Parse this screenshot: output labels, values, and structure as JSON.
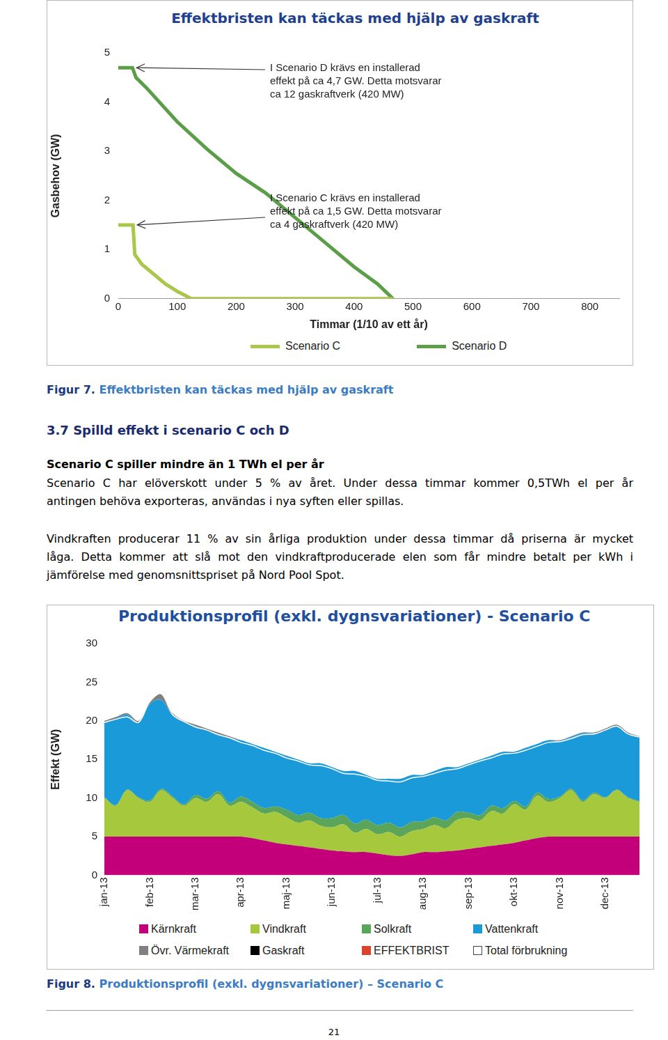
{
  "chart_data": [
    {
      "type": "line",
      "title": "Effektbristen kan täckas med hjälp av gaskraft",
      "xlabel": "Timmar (1/10 av ett år)",
      "ylabel": "Gasbehov (GW)",
      "xlim": [
        0,
        850
      ],
      "xticks": [
        0,
        100,
        200,
        300,
        400,
        500,
        600,
        700,
        800
      ],
      "ylim": [
        0,
        5
      ],
      "yticks": [
        0,
        1,
        2,
        3,
        4,
        5
      ],
      "grid": false,
      "legend": "bottom",
      "series": [
        {
          "name": "Scenario C",
          "color": "#a9c84a",
          "x": [
            0,
            25,
            28,
            40,
            60,
            80,
            100,
            124,
            466
          ],
          "values": [
            1.5,
            1.5,
            0.9,
            0.7,
            0.5,
            0.3,
            0.15,
            0,
            0
          ]
        },
        {
          "name": "Scenario D",
          "color": "#5a9e47",
          "x": [
            0,
            24,
            30,
            47,
            100,
            150,
            200,
            250,
            300,
            350,
            400,
            440,
            466
          ],
          "values": [
            4.7,
            4.7,
            4.5,
            4.3,
            3.6,
            3.05,
            2.55,
            2.15,
            1.65,
            1.15,
            0.65,
            0.3,
            0
          ]
        }
      ],
      "annotations": [
        {
          "series": "Scenario D",
          "text": [
            "I Scenario D krävs en installerad",
            "effekt på ca 4,7 GW. Detta motsvarar",
            "ca 12 gaskraftverk (420 MW)"
          ]
        },
        {
          "series": "Scenario C",
          "text": [
            "I Scenario C krävs en installerad",
            "effekt på ca 1,5 GW. Detta motsvarar",
            "ca 4 gaskraftverk (420 MW)"
          ]
        }
      ]
    },
    {
      "type": "area",
      "title": "Produktionsprofil (exkl. dygnsvariationer) - Scenario C",
      "ylabel": "Effekt (GW)",
      "categories": [
        "jan-13",
        null,
        null,
        null,
        "feb-13",
        null,
        null,
        null,
        "mar-13",
        null,
        null,
        null,
        "apr-13",
        null,
        null,
        null,
        "maj-13",
        null,
        null,
        null,
        "jun-13",
        null,
        null,
        null,
        "jul-13",
        null,
        null,
        null,
        "aug-13",
        null,
        null,
        null,
        "sep-13",
        null,
        null,
        null,
        "okt-13",
        null,
        null,
        null,
        "nov-13",
        null,
        null,
        null,
        "dec-13",
        null,
        null,
        null
      ],
      "ylim": [
        0,
        30
      ],
      "yticks": [
        0,
        5,
        10,
        15,
        20,
        25,
        30
      ],
      "grid": false,
      "stacked": true,
      "legend": "bottom",
      "series": [
        {
          "name": "Kärnkraft",
          "color": "#c3007a",
          "values": [
            5,
            5,
            5,
            5,
            5,
            5,
            5,
            5,
            5,
            5,
            5,
            5,
            5,
            4.8,
            4.5,
            4.2,
            4,
            3.8,
            3.6,
            3.4,
            3.2,
            3.1,
            3,
            3,
            2.8,
            2.6,
            2.5,
            2.7,
            3,
            3,
            3.1,
            3.2,
            3.4,
            3.6,
            3.8,
            4,
            4.2,
            4.5,
            4.8,
            5,
            5,
            5,
            5,
            5,
            5,
            5,
            5,
            5
          ]
        },
        {
          "name": "Vindkraft",
          "color": "#a6c83c",
          "values": [
            5,
            4,
            6,
            5,
            4.5,
            6,
            5,
            4,
            5,
            4.5,
            5.5,
            4,
            4.5,
            4,
            3.5,
            4,
            3.5,
            3,
            3.5,
            3,
            3,
            3.5,
            2.5,
            3,
            2.5,
            3,
            2.5,
            3,
            3,
            3.5,
            3,
            4,
            4,
            3.5,
            4.5,
            4,
            5,
            4,
            5.5,
            4.5,
            5,
            6,
            4.5,
            5.5,
            5,
            6,
            5,
            4.5
          ]
        },
        {
          "name": "Solkraft",
          "color": "#5aa55a",
          "values": [
            0.1,
            0.1,
            0.1,
            0.1,
            0.2,
            0.2,
            0.2,
            0.2,
            0.4,
            0.4,
            0.4,
            0.4,
            0.7,
            0.7,
            0.7,
            0.7,
            1,
            1,
            1,
            1,
            1.2,
            1.2,
            1.2,
            1.2,
            1.2,
            1.2,
            1.2,
            1.2,
            1,
            1,
            1,
            1,
            0.7,
            0.7,
            0.7,
            0.7,
            0.4,
            0.4,
            0.4,
            0.4,
            0.2,
            0.2,
            0.2,
            0.2,
            0.1,
            0.1,
            0.1,
            0.1
          ]
        },
        {
          "name": "Vattenkraft",
          "color": "#1a9ad8",
          "values": [
            9.7,
            11.2,
            9.7,
            9.7,
            12.5,
            11.5,
            10.5,
            10.6,
            8.9,
            8.9,
            7.4,
            8.4,
            7.3,
            7.5,
            7.8,
            7.1,
            7,
            7.2,
            6.4,
            7.1,
            6.6,
            5.7,
            6.8,
            5.8,
            6,
            5.7,
            6.3,
            6.1,
            6,
            6,
            6.9,
            5.8,
            6.4,
            7.2,
            6.5,
            7.3,
            6.4,
            7.6,
            6.3,
            7.6,
            7.2,
            6.7,
            8.7,
            7.7,
            8.7,
            8.2,
            8.2,
            8.2
          ]
        },
        {
          "name": "Övr. Värmekraft",
          "color": "#808080",
          "values": [
            0.2,
            0.2,
            0.2,
            0.2,
            0.3,
            0.8,
            0.3,
            0.2,
            0.2,
            0.2,
            0.2,
            0.2,
            0,
            0,
            0,
            0,
            0,
            0,
            0,
            0,
            0,
            0,
            0,
            0,
            0,
            0,
            0,
            0,
            0,
            0,
            0,
            0,
            0,
            0,
            0,
            0,
            0,
            0,
            0,
            0,
            0.1,
            0.1,
            0.1,
            0.1,
            0.2,
            0.2,
            0.2,
            0.2
          ]
        },
        {
          "name": "Gaskraft",
          "color": "#000000",
          "values": [
            0,
            0,
            0,
            0,
            0,
            0,
            0,
            0,
            0,
            0,
            0,
            0,
            0,
            0,
            0,
            0,
            0,
            0,
            0,
            0,
            0,
            0,
            0,
            0,
            0,
            0,
            0,
            0,
            0,
            0,
            0,
            0,
            0,
            0,
            0,
            0,
            0,
            0,
            0,
            0,
            0,
            0,
            0,
            0,
            0,
            0,
            0,
            0
          ]
        },
        {
          "name": "EFFEKTBRIST",
          "color": "#d9442b",
          "values": [
            0,
            0,
            0,
            0,
            0,
            0,
            0,
            0,
            0,
            0,
            0,
            0,
            0,
            0,
            0,
            0,
            0,
            0,
            0,
            0,
            0,
            0,
            0,
            0,
            0,
            0,
            0,
            0,
            0,
            0,
            0,
            0,
            0,
            0,
            0,
            0,
            0,
            0,
            0,
            0,
            0,
            0,
            0,
            0,
            0,
            0,
            0,
            0
          ]
        },
        {
          "name": "Total förbrukning",
          "color": "#ffffff",
          "type": "line",
          "values": [
            19.8,
            20.2,
            20.5,
            19.8,
            22.5,
            23.5,
            20.8,
            19.9,
            19.2,
            18.8,
            18.2,
            17.8,
            17.2,
            16.8,
            16.2,
            15.8,
            15.2,
            14.8,
            14.3,
            14.2,
            13.8,
            13.2,
            13.1,
            12.8,
            12.3,
            12.2,
            12.1,
            12.6,
            12.8,
            13.2,
            13.6,
            13.8,
            14.3,
            14.8,
            15.2,
            15.7,
            15.8,
            16.2,
            16.7,
            17.2,
            17.3,
            17.7,
            18.2,
            18.3,
            18.8,
            19.3,
            18.3,
            17.9
          ]
        }
      ]
    }
  ],
  "document": {
    "captions": [
      {
        "label": "Figur 7.",
        "text": "Effektbristen kan täckas med hjälp av gaskraft"
      },
      {
        "label": "Figur 8.",
        "text": "Produktionsprofil (exkl. dygnsvariationer) – Scenario C"
      }
    ],
    "section": {
      "heading": "3.7 Spilld effekt i scenario C och D",
      "lead": "Scenario C spiller mindre än 1 TWh el per år",
      "paragraphs": [
        [
          "Scenario C har elöverskott under 5 % av året. Under dessa timmar kommer 0,5TWh el per år",
          "antingen behöva exporteras, användas i nya syften eller spillas."
        ],
        [
          "Vindkraften producerar 11 % av sin årliga produktion under dessa timmar då priserna är mycket",
          "låga. Detta kommer att slå mot den vindkraftproducerade elen som får mindre betalt per kWh i",
          "jämförelse med genomsnittspriset på Nord Pool Spot."
        ]
      ]
    },
    "page_number": "21"
  }
}
